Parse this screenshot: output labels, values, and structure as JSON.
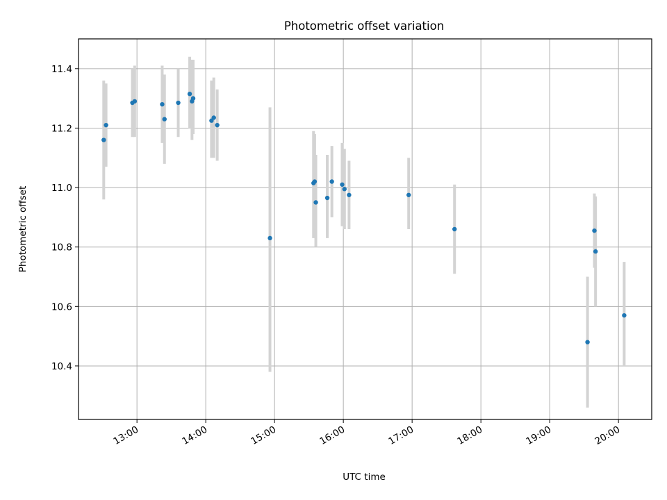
{
  "chart_data": {
    "type": "scatter",
    "title": "Photometric offset variation",
    "xlabel": "UTC time",
    "ylabel": "Photometric offset",
    "x_format": "HH:MM",
    "xlim": [
      "12:09",
      "20:29"
    ],
    "ylim": [
      10.22,
      11.5
    ],
    "x_ticks": [
      "13:00",
      "14:00",
      "15:00",
      "16:00",
      "17:00",
      "18:00",
      "19:00",
      "20:00"
    ],
    "y_ticks": [
      "10.4",
      "10.6",
      "10.8",
      "11.0",
      "11.2",
      "11.4"
    ],
    "grid": true,
    "point_color": "#1f77b4",
    "errorbar_color": "#d3d3d3",
    "points": [
      {
        "x": "12:31",
        "y": 11.16,
        "lo": 10.96,
        "hi": 11.36
      },
      {
        "x": "12:33",
        "y": 11.21,
        "lo": 11.07,
        "hi": 11.35
      },
      {
        "x": "12:56",
        "y": 11.285,
        "lo": 11.17,
        "hi": 11.4
      },
      {
        "x": "12:58",
        "y": 11.29,
        "lo": 11.17,
        "hi": 11.41
      },
      {
        "x": "13:22",
        "y": 11.28,
        "lo": 11.15,
        "hi": 11.41
      },
      {
        "x": "13:24",
        "y": 11.23,
        "lo": 11.08,
        "hi": 11.38
      },
      {
        "x": "13:36",
        "y": 11.285,
        "lo": 11.17,
        "hi": 11.4
      },
      {
        "x": "13:46",
        "y": 11.315,
        "lo": 11.2,
        "hi": 11.44
      },
      {
        "x": "13:48",
        "y": 11.29,
        "lo": 11.16,
        "hi": 11.43
      },
      {
        "x": "13:49",
        "y": 11.3,
        "lo": 11.18,
        "hi": 11.43
      },
      {
        "x": "14:05",
        "y": 11.225,
        "lo": 11.1,
        "hi": 11.36
      },
      {
        "x": "14:07",
        "y": 11.235,
        "lo": 11.1,
        "hi": 11.37
      },
      {
        "x": "14:10",
        "y": 11.21,
        "lo": 11.09,
        "hi": 11.33
      },
      {
        "x": "14:56",
        "y": 10.83,
        "lo": 10.38,
        "hi": 11.27
      },
      {
        "x": "15:34",
        "y": 11.015,
        "lo": 10.83,
        "hi": 11.19
      },
      {
        "x": "15:35",
        "y": 11.02,
        "lo": 10.86,
        "hi": 11.18
      },
      {
        "x": "15:36",
        "y": 10.95,
        "lo": 10.8,
        "hi": 11.11
      },
      {
        "x": "15:46",
        "y": 10.965,
        "lo": 10.83,
        "hi": 11.11
      },
      {
        "x": "15:50",
        "y": 11.02,
        "lo": 10.9,
        "hi": 11.14
      },
      {
        "x": "15:59",
        "y": 11.01,
        "lo": 10.87,
        "hi": 11.15
      },
      {
        "x": "16:01",
        "y": 10.995,
        "lo": 10.86,
        "hi": 11.13
      },
      {
        "x": "16:05",
        "y": 10.975,
        "lo": 10.86,
        "hi": 11.09
      },
      {
        "x": "16:57",
        "y": 10.975,
        "lo": 10.86,
        "hi": 11.1
      },
      {
        "x": "17:37",
        "y": 10.86,
        "lo": 10.71,
        "hi": 11.01
      },
      {
        "x": "19:33",
        "y": 10.48,
        "lo": 10.26,
        "hi": 10.7
      },
      {
        "x": "19:39",
        "y": 10.855,
        "lo": 10.73,
        "hi": 10.98
      },
      {
        "x": "19:40",
        "y": 10.785,
        "lo": 10.6,
        "hi": 10.97
      },
      {
        "x": "20:05",
        "y": 10.57,
        "lo": 10.4,
        "hi": 10.75
      }
    ]
  }
}
